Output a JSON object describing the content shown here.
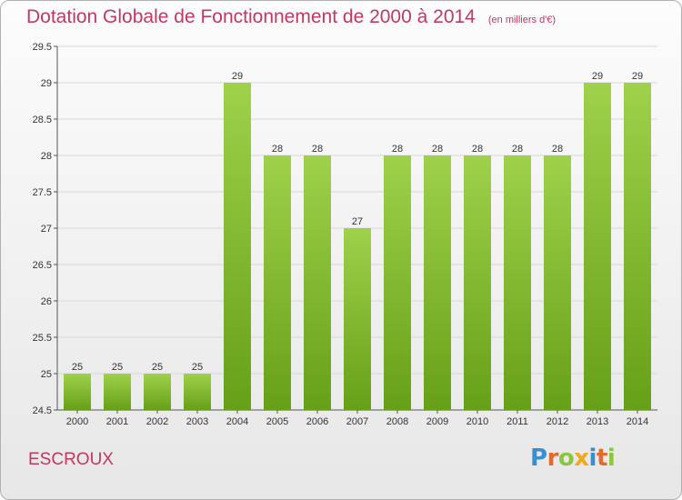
{
  "header": {
    "title": "Dotation Globale de Fonctionnement de 2000 à 2014",
    "unit": "(en milliers d'€)"
  },
  "commune": "ESCROUX",
  "logo": {
    "text": "Proxiti",
    "letters": [
      {
        "char": "P",
        "color": "#3a8fd0"
      },
      {
        "char": "r",
        "color": "#e26a2c"
      },
      {
        "char": "o",
        "color": "#8cc63f"
      },
      {
        "char": "x",
        "color": "#f2a81d"
      },
      {
        "char": "i",
        "color": "#3a8fd0"
      },
      {
        "char": "t",
        "color": "#e26a2c"
      },
      {
        "char": "i",
        "color": "#8cc63f"
      }
    ]
  },
  "colors": {
    "bar_top": "#9fd14b",
    "bar_bottom": "#66a018",
    "title": "#c0395f",
    "grid": "#d8d8d8"
  },
  "chart_data": {
    "type": "bar",
    "categories": [
      "2000",
      "2001",
      "2002",
      "2003",
      "2004",
      "2005",
      "2006",
      "2007",
      "2008",
      "2009",
      "2010",
      "2011",
      "2012",
      "2013",
      "2014"
    ],
    "values": [
      25,
      25,
      25,
      25,
      29,
      28,
      28,
      27,
      28,
      28,
      28,
      28,
      28,
      29,
      29
    ],
    "value_labels": [
      "25",
      "25",
      "25",
      "25",
      "29",
      "28",
      "28",
      "27",
      "28",
      "28",
      "28",
      "28",
      "28",
      "29",
      "29"
    ],
    "yticks": [
      24.5,
      25,
      25.5,
      26,
      26.5,
      27,
      27.5,
      28,
      28.5,
      29,
      29.5
    ],
    "ytick_labels": [
      "24.5",
      "25",
      "25.5",
      "26",
      "26.5",
      "27",
      "27.5",
      "28",
      "28.5",
      "29",
      "29.5"
    ],
    "ylim": [
      24.5,
      29.5
    ],
    "grid": true
  }
}
